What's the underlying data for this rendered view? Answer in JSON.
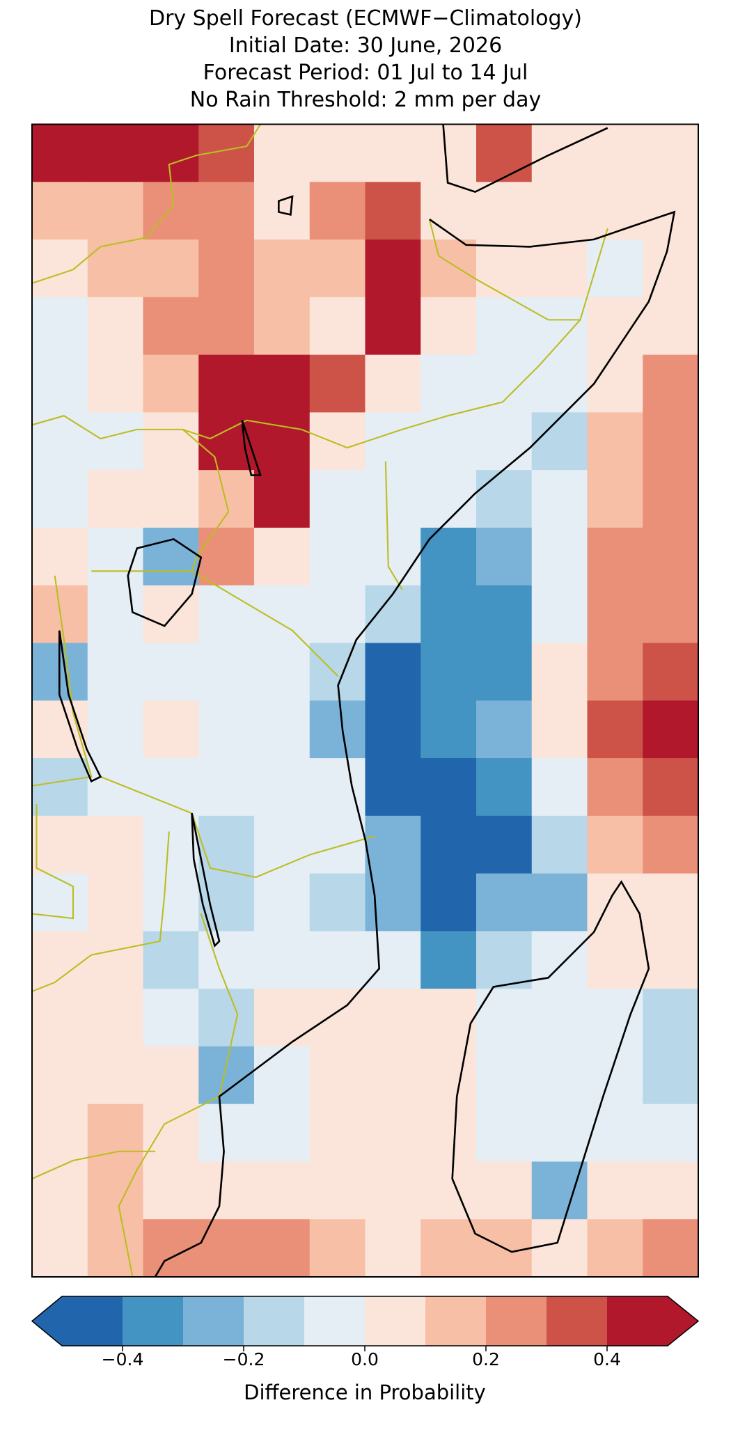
{
  "title": [
    "Dry Spell Forecast (ECMWF−Climatology)",
    "Initial Date: 30 June, 2026",
    "Forecast Period: 01 Jul to 14 Jul",
    "No Rain Threshold: 2 mm per day"
  ],
  "map": {
    "values": [
      [
        0.45,
        0.45,
        0.45,
        0.3,
        0.05,
        0.05,
        0.05,
        0.05,
        0.35,
        0.05,
        0.05,
        0.05
      ],
      [
        0.15,
        0.15,
        0.2,
        0.25,
        0.05,
        0.2,
        0.3,
        0.05,
        0.05,
        0.05,
        0.05,
        0.05
      ],
      [
        0.05,
        0.15,
        0.15,
        0.2,
        0.1,
        0.15,
        0.4,
        0.15,
        0.05,
        0.05,
        -0.05,
        0.05
      ],
      [
        -0.05,
        0.05,
        0.25,
        0.2,
        0.1,
        0.05,
        0.4,
        0.05,
        -0.05,
        -0.05,
        0.05,
        0.05
      ],
      [
        -0.05,
        0.05,
        0.1,
        0.45,
        0.45,
        0.3,
        0.05,
        -0.05,
        -0.05,
        -0.05,
        0.05,
        0.2
      ],
      [
        -0.05,
        -0.05,
        0.05,
        0.45,
        0.4,
        0.05,
        -0.05,
        -0.05,
        -0.05,
        -0.15,
        0.15,
        0.25
      ],
      [
        -0.05,
        0.05,
        0.05,
        0.15,
        0.45,
        -0.05,
        -0.05,
        -0.05,
        -0.15,
        -0.05,
        0.15,
        0.25
      ],
      [
        0.05,
        -0.05,
        -0.25,
        0.2,
        0.05,
        -0.05,
        -0.05,
        -0.35,
        -0.25,
        -0.05,
        0.2,
        0.2
      ],
      [
        0.1,
        -0.05,
        0.05,
        -0.05,
        -0.05,
        -0.05,
        -0.15,
        -0.35,
        -0.35,
        -0.05,
        0.25,
        0.2
      ],
      [
        -0.25,
        -0.05,
        -0.05,
        -0.05,
        -0.05,
        -0.15,
        -0.45,
        -0.35,
        -0.35,
        0.05,
        0.25,
        0.35
      ],
      [
        0.05,
        -0.05,
        0.05,
        -0.05,
        -0.05,
        -0.25,
        -0.45,
        -0.35,
        -0.25,
        0.05,
        0.3,
        0.4
      ],
      [
        -0.15,
        -0.05,
        -0.05,
        -0.05,
        -0.05,
        -0.05,
        -0.45,
        -0.45,
        -0.35,
        -0.05,
        0.25,
        0.35
      ],
      [
        0.05,
        0.05,
        -0.05,
        -0.15,
        -0.05,
        -0.05,
        -0.25,
        -0.45,
        -0.45,
        -0.15,
        0.15,
        0.2
      ],
      [
        -0.05,
        0.05,
        -0.05,
        -0.15,
        -0.05,
        -0.15,
        -0.25,
        -0.45,
        -0.25,
        -0.25,
        0.05,
        0.05
      ],
      [
        0.05,
        0.05,
        -0.15,
        -0.05,
        -0.05,
        -0.05,
        -0.05,
        -0.35,
        -0.15,
        -0.05,
        0.05,
        0.05
      ],
      [
        0.05,
        0.05,
        -0.05,
        -0.15,
        0.05,
        0.05,
        0.05,
        0.05,
        -0.05,
        -0.05,
        -0.05,
        -0.15
      ],
      [
        0.05,
        0.05,
        0.05,
        -0.25,
        -0.05,
        0.05,
        0.05,
        0.05,
        -0.05,
        -0.05,
        -0.05,
        -0.15
      ],
      [
        0.05,
        0.15,
        0.05,
        -0.05,
        -0.05,
        0.05,
        0.05,
        0.05,
        -0.05,
        -0.05,
        -0.05,
        -0.05
      ],
      [
        0.05,
        0.15,
        0.05,
        0.05,
        0.05,
        0.05,
        0.05,
        0.05,
        0.05,
        -0.25,
        0.05,
        0.05
      ],
      [
        0.05,
        0.15,
        0.2,
        0.2,
        0.25,
        0.15,
        0.05,
        0.15,
        0.15,
        0.05,
        0.15,
        0.25
      ]
    ]
  },
  "colorbar": {
    "levels": [
      -0.5,
      -0.4,
      -0.3,
      -0.2,
      -0.1,
      0,
      0.1,
      0.2,
      0.3,
      0.4,
      0.5
    ],
    "colors": [
      "#2166ac",
      "#4393c3",
      "#7ab3d7",
      "#b8d8e9",
      "#e4eef4",
      "#fbe5da",
      "#f7bfa5",
      "#ea9078",
      "#cd5349",
      "#b1182b"
    ],
    "ticks": [
      {
        "value": -0.4,
        "label": "−0.4"
      },
      {
        "value": -0.2,
        "label": "−0.2"
      },
      {
        "value": 0,
        "label": "0.0"
      },
      0.2,
      0.4
    ],
    "label": "Difference in Probability"
  }
}
